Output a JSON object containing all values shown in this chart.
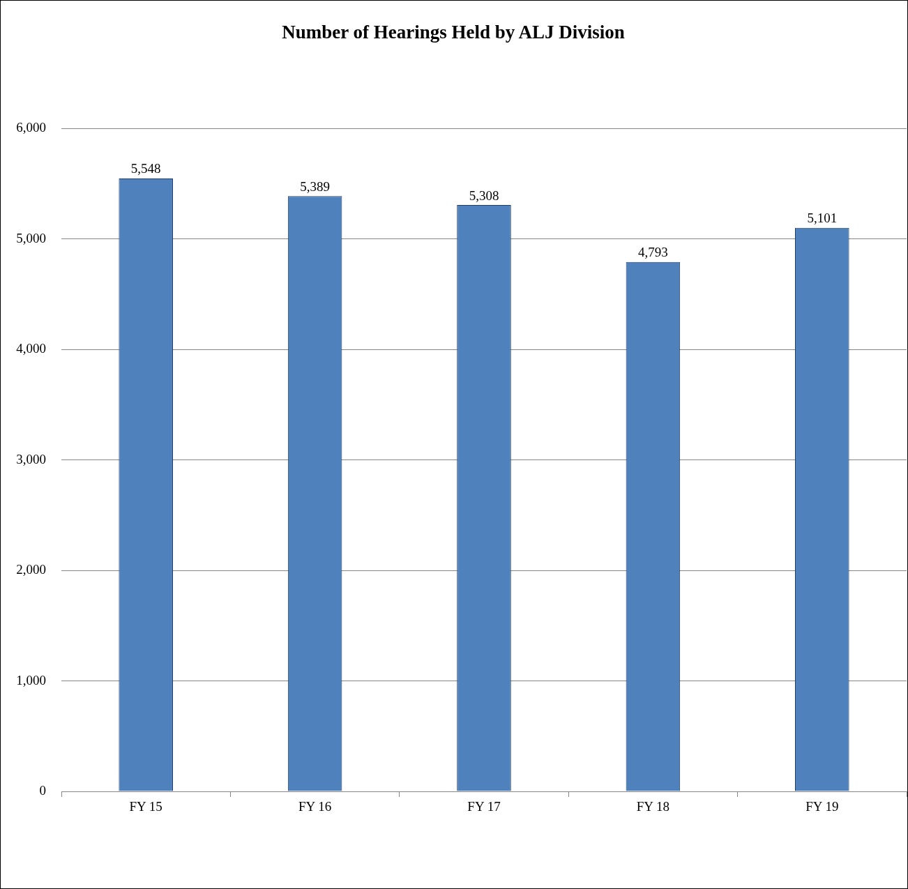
{
  "chart_data": {
    "type": "bar",
    "title": "Number of Hearings Held by ALJ Division",
    "categories": [
      "FY 15",
      "FY 16",
      "FY 17",
      "FY 18",
      "FY 19"
    ],
    "values": [
      5548,
      5389,
      5308,
      4793,
      5101
    ],
    "color": "#4f81bd",
    "value_labels": [
      "5,548",
      "5,389",
      "5,308",
      "4,793",
      "5,101"
    ],
    "ylim": [
      0,
      6000
    ],
    "yticks": [
      0,
      {
        "value": 1000,
        "label": "1,000"
      },
      {
        "value": 2000,
        "label": "2,000"
      },
      {
        "value": 3000,
        "label": "3,000"
      },
      {
        "value": 4000,
        "label": "4,000"
      },
      {
        "value": 5000,
        "label": "5,000"
      },
      {
        "value": 6000,
        "label": "6,000"
      }
    ],
    "grid": "y",
    "legend": false
  }
}
